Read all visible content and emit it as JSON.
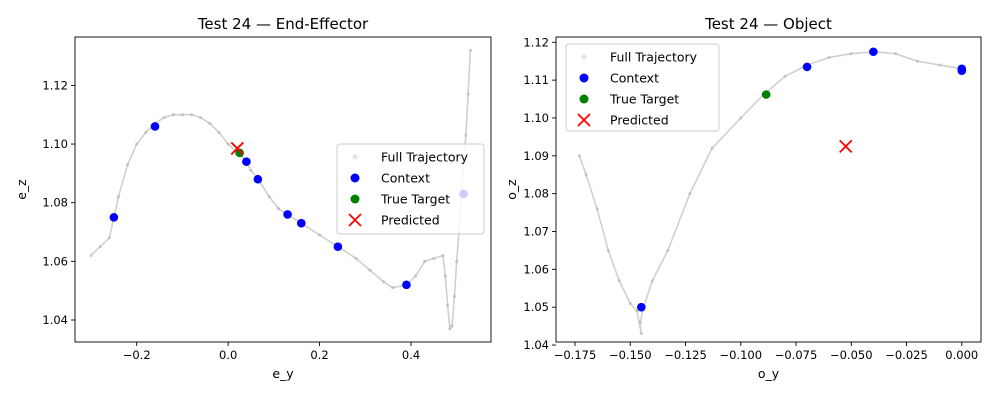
{
  "figure": {
    "background": "#ffffff"
  },
  "chart_data": [
    {
      "type": "scatter",
      "title": "Test 24 — End-Effector",
      "xlabel": "e_y",
      "ylabel": "e_z",
      "xlim": [
        -0.335,
        0.575
      ],
      "ylim": [
        1.0325,
        1.1365
      ],
      "xticks": [
        -0.2,
        0.0,
        0.2,
        0.4
      ],
      "xtick_labels": [
        "−0.2",
        "0.0",
        "0.2",
        "0.4"
      ],
      "yticks": [
        1.04,
        1.06,
        1.08,
        1.1,
        1.12
      ],
      "ytick_labels": [
        "1.04",
        "1.06",
        "1.08",
        "1.10",
        "1.12"
      ],
      "grid": false,
      "legend_position": "center-right",
      "series": [
        {
          "name": "Full Trajectory",
          "kind": "trajectory",
          "color": "#a9a9a9",
          "x": [
            -0.3,
            -0.28,
            -0.26,
            -0.25,
            -0.24,
            -0.22,
            -0.2,
            -0.18,
            -0.16,
            -0.14,
            -0.12,
            -0.1,
            -0.08,
            -0.06,
            -0.04,
            -0.02,
            0.0,
            0.02,
            0.03,
            0.04,
            0.05,
            0.07,
            0.09,
            0.11,
            0.13,
            0.16,
            0.2,
            0.24,
            0.28,
            0.31,
            0.34,
            0.36,
            0.39,
            0.41,
            0.43,
            0.45,
            0.47,
            0.475,
            0.48,
            0.485,
            0.49,
            0.495,
            0.5,
            0.505,
            0.51,
            0.515,
            0.52,
            0.525,
            0.53
          ],
          "y": [
            1.062,
            1.065,
            1.068,
            1.075,
            1.082,
            1.093,
            1.1,
            1.104,
            1.107,
            1.109,
            1.11,
            1.11,
            1.11,
            1.109,
            1.107,
            1.104,
            1.1,
            1.097,
            1.096,
            1.094,
            1.091,
            1.087,
            1.082,
            1.078,
            1.076,
            1.073,
            1.069,
            1.065,
            1.061,
            1.057,
            1.053,
            1.051,
            1.052,
            1.055,
            1.06,
            1.061,
            1.062,
            1.055,
            1.045,
            1.037,
            1.038,
            1.048,
            1.06,
            1.07,
            1.082,
            1.093,
            1.103,
            1.117,
            1.132
          ]
        },
        {
          "name": "Context",
          "kind": "points",
          "color": "#0000ff",
          "x": [
            -0.25,
            -0.16,
            0.04,
            0.065,
            0.13,
            0.16,
            0.24,
            0.39,
            0.515
          ],
          "y": [
            1.075,
            1.106,
            1.094,
            1.088,
            1.076,
            1.073,
            1.065,
            1.052,
            1.083
          ]
        },
        {
          "name": "True Target",
          "kind": "points",
          "color": "#008000",
          "x": [
            0.025
          ],
          "y": [
            1.097
          ]
        },
        {
          "name": "Predicted",
          "kind": "cross",
          "color": "#ff0000",
          "x": [
            0.02
          ],
          "y": [
            1.0985
          ]
        }
      ]
    },
    {
      "type": "scatter",
      "title": "Test 24 — Object",
      "xlabel": "o_y",
      "ylabel": "o_z",
      "xlim": [
        -0.1836,
        0.0087
      ],
      "ylim": [
        1.0408,
        1.1214
      ],
      "xticks": [
        -0.175,
        -0.15,
        -0.125,
        -0.1,
        -0.075,
        -0.05,
        -0.025,
        0.0
      ],
      "xtick_labels": [
        "−0.175",
        "−0.150",
        "−0.125",
        "−0.100",
        "−0.075",
        "−0.050",
        "−0.025",
        "0.000"
      ],
      "yticks": [
        1.04,
        1.05,
        1.06,
        1.07,
        1.08,
        1.09,
        1.1,
        1.11,
        1.12
      ],
      "ytick_labels": [
        "1.04",
        "1.05",
        "1.06",
        "1.07",
        "1.08",
        "1.09",
        "1.10",
        "1.11",
        "1.12"
      ],
      "grid": false,
      "legend_position": "upper-left",
      "series": [
        {
          "name": "Full Trajectory",
          "kind": "trajectory",
          "color": "#a9a9a9",
          "x": [
            -0.173,
            -0.17,
            -0.165,
            -0.16,
            -0.155,
            -0.15,
            -0.147,
            -0.145,
            -0.1455,
            -0.144,
            -0.14,
            -0.133,
            -0.123,
            -0.113,
            -0.1,
            -0.09,
            -0.08,
            -0.07,
            -0.06,
            -0.05,
            -0.04,
            -0.03,
            -0.02,
            -0.01,
            0.0
          ],
          "y": [
            1.09,
            1.085,
            1.076,
            1.065,
            1.057,
            1.051,
            1.049,
            1.043,
            1.046,
            1.05,
            1.057,
            1.065,
            1.08,
            1.092,
            1.1,
            1.106,
            1.111,
            1.114,
            1.116,
            1.117,
            1.1175,
            1.117,
            1.115,
            1.114,
            1.113
          ]
        },
        {
          "name": "Context",
          "kind": "points",
          "color": "#0000ff",
          "x": [
            -0.145,
            -0.07,
            -0.04,
            0.0,
            0.0
          ],
          "y": [
            1.05,
            1.1135,
            1.1175,
            1.113,
            1.1125
          ]
        },
        {
          "name": "True Target",
          "kind": "points",
          "color": "#008000",
          "x": [
            -0.0885
          ],
          "y": [
            1.1062
          ]
        },
        {
          "name": "Predicted",
          "kind": "cross",
          "color": "#ff0000",
          "x": [
            -0.0525
          ],
          "y": [
            1.0925
          ]
        }
      ]
    }
  ]
}
